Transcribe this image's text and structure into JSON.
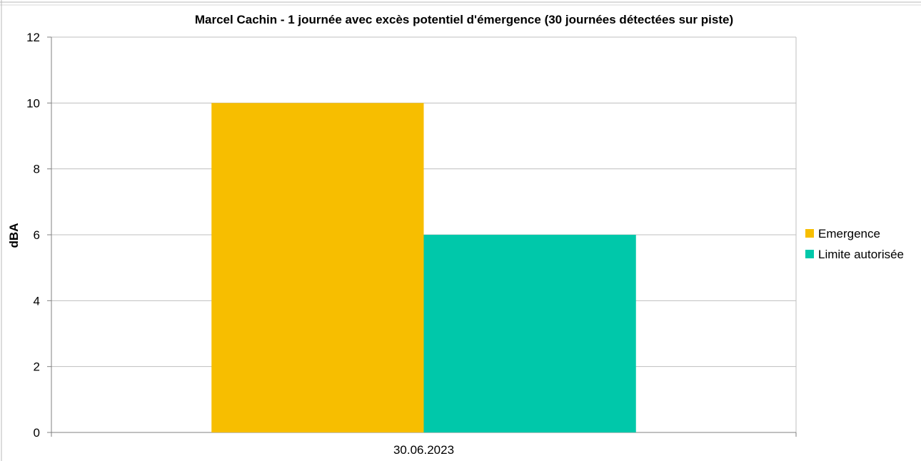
{
  "chart_data": {
    "type": "bar",
    "title": "Marcel Cachin - 1 journée avec excès potentiel d'émergence (30 journées détectées sur piste)",
    "xlabel": "",
    "ylabel": "dBA",
    "categories": [
      "30.06.2023"
    ],
    "series": [
      {
        "name": "Emergence",
        "values": [
          10
        ],
        "color": "#F7BE00"
      },
      {
        "name": "Limite autorisée",
        "values": [
          6
        ],
        "color": "#00C8AA"
      }
    ],
    "ylim": [
      0,
      12
    ],
    "yticks": [
      "0",
      "2",
      "4",
      "6",
      "8",
      "10",
      "12"
    ],
    "grid": true,
    "legend_position": "right"
  }
}
